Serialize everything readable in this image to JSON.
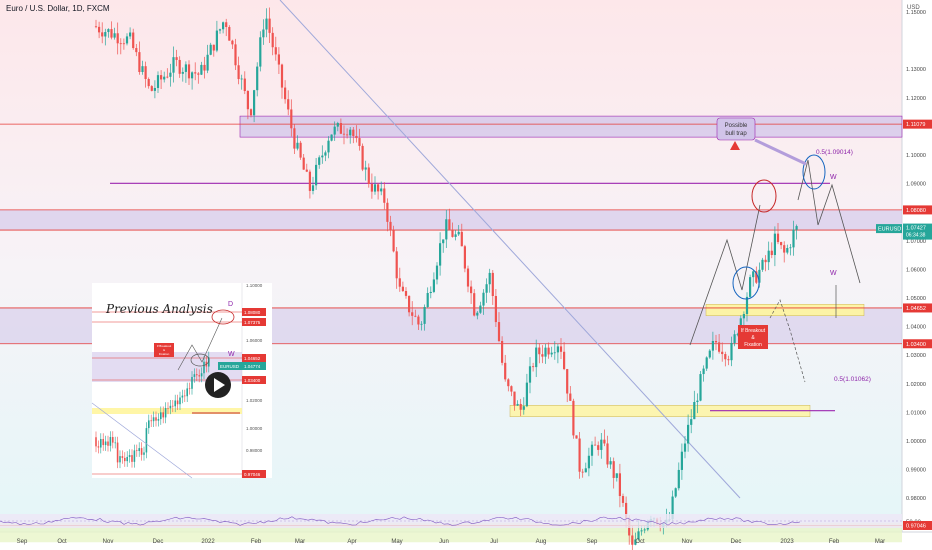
{
  "header": {
    "title": "Euro / U.S. Dollar, 1D, FXCM",
    "currency": "USD"
  },
  "colors": {
    "up": "#26a69a",
    "down": "#ef5350",
    "resistance_line": "#e53935",
    "purple_line": "#9c27b0",
    "zone_fill": "#d1c4e9",
    "yellow_zone": "#fff59d",
    "bg_top": "#fde7ea",
    "bg_bottom": "#e4f6f8",
    "price_tag": "#26a69a",
    "level_tag": "#e53935"
  },
  "chart_data": {
    "type": "candlestick",
    "symbol": "EURUSD",
    "current_price": "1.07427",
    "countdown": "06:34:38",
    "y_axis": {
      "ylim": [
        0.955,
        1.155
      ],
      "ticks": [
        "1.15000",
        "1.13000",
        "1.12000",
        "1.11000",
        "1.10000",
        "1.09000",
        "1.08000",
        "1.07000",
        "1.06000",
        "1.05000",
        "1.04000",
        "1.03000",
        "1.02000",
        "1.01000",
        "1.00000",
        "0.99000",
        "0.98000",
        "0.97000",
        "0.96000"
      ]
    },
    "x_axis": {
      "labels": [
        "Sep",
        "Oct",
        "Nov",
        "Dec",
        "2022",
        "Feb",
        "Mar",
        "Apr",
        "May",
        "Jun",
        "Jul",
        "Aug",
        "Sep",
        "Oct",
        "Nov",
        "Dec",
        "2023",
        "Feb",
        "Mar"
      ]
    },
    "levels": [
      {
        "label": "1.11079",
        "value": 1.11079,
        "color": "#e53935"
      },
      {
        "label": "1.08080",
        "value": 1.0808,
        "color": "#e53935"
      },
      {
        "label": "1.07375",
        "value": 1.07375,
        "color": "#e53935"
      },
      {
        "label": "1.04652",
        "value": 1.04652,
        "color": "#e53935"
      },
      {
        "label": "1.03400",
        "value": 1.034,
        "color": "#e53935"
      },
      {
        "label": "0.97046",
        "value": 0.97046,
        "color": "#e53935"
      }
    ],
    "oscillator_label": "50.00",
    "annotations": {
      "fib_upper": "0.5(1.09014)",
      "fib_lower": "0.5(1.01062)",
      "bull_trap": [
        "Possible",
        "bull trap"
      ],
      "breakout": [
        "If Breakout",
        "&",
        "Fixation"
      ],
      "w_upper": "W",
      "w_lower": "W"
    },
    "inset": {
      "title": "Previous Analysis",
      "d_label": "D",
      "w_label": "W",
      "breakout": [
        "If Breakout",
        "&",
        "Fixation"
      ],
      "symbol": "EURUSD",
      "price": "1.04774",
      "ticks": [
        "1.10000",
        "1.06000",
        "1.02000",
        "1.00000",
        "0.98000"
      ],
      "levels": [
        "1.08080",
        "1.07375",
        "1.04652",
        "1.03400",
        "0.97046"
      ]
    }
  }
}
